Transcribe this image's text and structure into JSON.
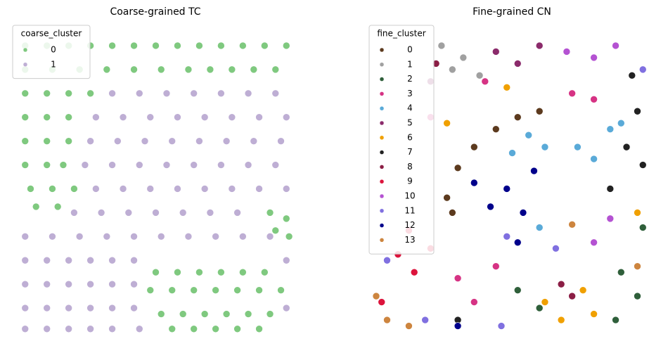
{
  "chart_data": [
    {
      "type": "scatter",
      "title": "Coarse-grained TC",
      "legend_title": "coarse_cluster",
      "legend": "upper left",
      "xlim": [
        0,
        100
      ],
      "ylim": [
        0,
        100
      ],
      "series": [
        {
          "name": "0",
          "color": "#7fc97f",
          "x": [
            2,
            10,
            18,
            26,
            34,
            42,
            50,
            58,
            66,
            74,
            82,
            90,
            98,
            2,
            12,
            22,
            32,
            42,
            52,
            62,
            70,
            78,
            86,
            94,
            2,
            10,
            18,
            26,
            2,
            10,
            18,
            2,
            10,
            18,
            2,
            10,
            16,
            4,
            12,
            20,
            6,
            14,
            92,
            98,
            94,
            99,
            50,
            58,
            66,
            74,
            82,
            90,
            48,
            56,
            64,
            72,
            80,
            88,
            96,
            52,
            60,
            68,
            76,
            84,
            92,
            56,
            64,
            72,
            80,
            88
          ],
          "y": [
            96,
            96,
            96,
            96,
            96,
            96,
            96,
            96,
            96,
            96,
            96,
            96,
            96,
            88,
            88,
            88,
            88,
            88,
            88,
            88,
            88,
            88,
            88,
            88,
            80,
            80,
            80,
            80,
            72,
            72,
            72,
            64,
            64,
            64,
            56,
            56,
            56,
            48,
            48,
            48,
            42,
            42,
            40,
            38,
            34,
            32,
            20,
            20,
            20,
            20,
            20,
            20,
            14,
            14,
            14,
            14,
            14,
            14,
            14,
            6,
            6,
            6,
            6,
            6,
            6,
            1,
            1,
            1,
            1,
            1
          ]
        },
        {
          "name": "1",
          "color": "#beaed4",
          "x": [
            34,
            44,
            54,
            64,
            74,
            84,
            94,
            28,
            38,
            48,
            58,
            68,
            78,
            88,
            98,
            26,
            36,
            46,
            56,
            66,
            76,
            86,
            96,
            24,
            34,
            44,
            54,
            64,
            74,
            84,
            94,
            28,
            38,
            48,
            58,
            68,
            78,
            88,
            98,
            20,
            30,
            40,
            50,
            60,
            70,
            80,
            2,
            12,
            22,
            32,
            42,
            52,
            62,
            72,
            82,
            92,
            2,
            10,
            18,
            26,
            34,
            42,
            98,
            2,
            10,
            18,
            26,
            34,
            42,
            2,
            10,
            18,
            26,
            34,
            42,
            98,
            2,
            10,
            18,
            26,
            34,
            44
          ],
          "y": [
            80,
            80,
            80,
            80,
            80,
            80,
            80,
            72,
            72,
            72,
            72,
            72,
            72,
            72,
            72,
            64,
            64,
            64,
            64,
            64,
            64,
            64,
            64,
            56,
            56,
            56,
            56,
            56,
            56,
            56,
            56,
            48,
            48,
            48,
            48,
            48,
            48,
            48,
            48,
            40,
            40,
            40,
            40,
            40,
            40,
            40,
            32,
            32,
            32,
            32,
            32,
            32,
            32,
            32,
            32,
            32,
            24,
            24,
            24,
            24,
            24,
            24,
            24,
            16,
            16,
            16,
            16,
            16,
            16,
            8,
            8,
            8,
            8,
            8,
            8,
            8,
            1,
            1,
            1,
            1,
            1,
            1
          ]
        }
      ]
    },
    {
      "type": "scatter",
      "title": "Fine-grained CN",
      "legend_title": "fine_cluster",
      "legend": "upper left",
      "xlim": [
        0,
        100
      ],
      "ylim": [
        0,
        100
      ],
      "series": [
        {
          "name": "0",
          "color": "#5c3a1e",
          "x": [
            26,
            30,
            36,
            44,
            52,
            60,
            28
          ],
          "y": [
            45,
            55,
            62,
            68,
            72,
            74,
            40
          ]
        },
        {
          "name": "1",
          "color": "#a0a0a0",
          "x": [
            24,
            32,
            38,
            28
          ],
          "y": [
            96,
            92,
            86,
            88
          ]
        },
        {
          "name": "2",
          "color": "#2f5f3a",
          "x": [
            52,
            60,
            90,
            96,
            98,
            88
          ],
          "y": [
            14,
            8,
            20,
            12,
            35,
            4
          ]
        },
        {
          "name": "3",
          "color": "#d63384",
          "x": [
            30,
            36,
            44,
            72,
            80,
            20,
            40
          ],
          "y": [
            18,
            10,
            22,
            80,
            78,
            72,
            84
          ]
        },
        {
          "name": "4",
          "color": "#5aaad8",
          "x": [
            50,
            56,
            62,
            74,
            80,
            86,
            90,
            60
          ],
          "y": [
            60,
            66,
            62,
            62,
            58,
            68,
            70,
            35
          ]
        },
        {
          "name": "5",
          "color": "#8b2b6b",
          "x": [
            44,
            52,
            60,
            20
          ],
          "y": [
            94,
            90,
            96,
            84
          ]
        },
        {
          "name": "6",
          "color": "#f0a000",
          "x": [
            62,
            68,
            76,
            80,
            26,
            48,
            96
          ],
          "y": [
            10,
            4,
            14,
            6,
            70,
            82,
            40
          ]
        },
        {
          "name": "7",
          "color": "#222222",
          "x": [
            94,
            96,
            92,
            98,
            86,
            30
          ],
          "y": [
            86,
            74,
            62,
            56,
            48,
            4
          ]
        },
        {
          "name": "8",
          "color": "#8b1e45",
          "x": [
            68,
            72,
            22
          ],
          "y": [
            16,
            12,
            90
          ]
        },
        {
          "name": "9",
          "color": "#dc143c",
          "x": [
            8,
            14,
            20,
            12,
            2
          ],
          "y": [
            26,
            20,
            28,
            34,
            10
          ]
        },
        {
          "name": "10",
          "color": "#b452d2",
          "x": [
            70,
            80,
            88,
            86,
            80
          ],
          "y": [
            94,
            92,
            96,
            38,
            30
          ]
        },
        {
          "name": "11",
          "color": "#8070e0",
          "x": [
            18,
            4,
            48,
            66,
            98,
            46
          ],
          "y": [
            4,
            24,
            32,
            28,
            88,
            2
          ]
        },
        {
          "name": "12",
          "color": "#00008b",
          "x": [
            36,
            42,
            48,
            54,
            58,
            52,
            30
          ],
          "y": [
            50,
            42,
            48,
            40,
            54,
            30,
            2
          ]
        },
        {
          "name": "13",
          "color": "#cd853f",
          "x": [
            0,
            4,
            12,
            72,
            96
          ],
          "y": [
            12,
            4,
            2,
            36,
            22
          ]
        }
      ]
    }
  ]
}
